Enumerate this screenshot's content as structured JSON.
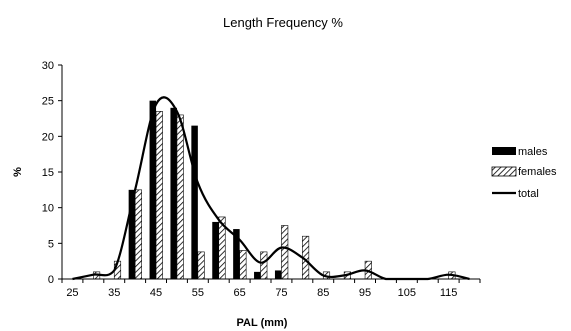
{
  "chart_data": {
    "type": "bar",
    "title": "Length Frequency %",
    "xlabel": "PAL (mm)",
    "ylabel": "%",
    "ylim": [
      0,
      30
    ],
    "yticks": [
      0,
      5,
      10,
      15,
      20,
      25,
      30
    ],
    "xticks": [
      25,
      35,
      45,
      55,
      65,
      75,
      85,
      95,
      105,
      115
    ],
    "categories": [
      25,
      30,
      35,
      40,
      45,
      50,
      55,
      60,
      65,
      70,
      75,
      80,
      85,
      90,
      95,
      100,
      105,
      110,
      115,
      120
    ],
    "series": [
      {
        "name": "males",
        "kind": "bar",
        "pattern": "solid",
        "values": [
          0,
          0,
          0,
          12.5,
          25,
          24,
          21.5,
          8,
          7,
          1,
          1.2,
          0,
          0,
          0,
          0,
          0,
          0,
          0,
          0,
          0
        ]
      },
      {
        "name": "females",
        "kind": "bar",
        "pattern": "hatched",
        "values": [
          0,
          1,
          2.5,
          12.5,
          23.5,
          23,
          3.8,
          8.7,
          4,
          3.8,
          7.5,
          6,
          1,
          1,
          2.5,
          0,
          0,
          0,
          1,
          0
        ]
      },
      {
        "name": "total",
        "kind": "line",
        "values": [
          0,
          0.6,
          1.2,
          12.5,
          24.5,
          23.5,
          13.5,
          8.3,
          5.5,
          2.3,
          4.4,
          3,
          0.5,
          0.5,
          1.2,
          0,
          0,
          0,
          0.6,
          0
        ]
      }
    ],
    "legend": {
      "position": "right",
      "entries": [
        "males",
        "females",
        "total"
      ]
    },
    "grid": false,
    "colors": {
      "males": "#000000",
      "females": "#ffffff",
      "total": "#000000"
    }
  }
}
